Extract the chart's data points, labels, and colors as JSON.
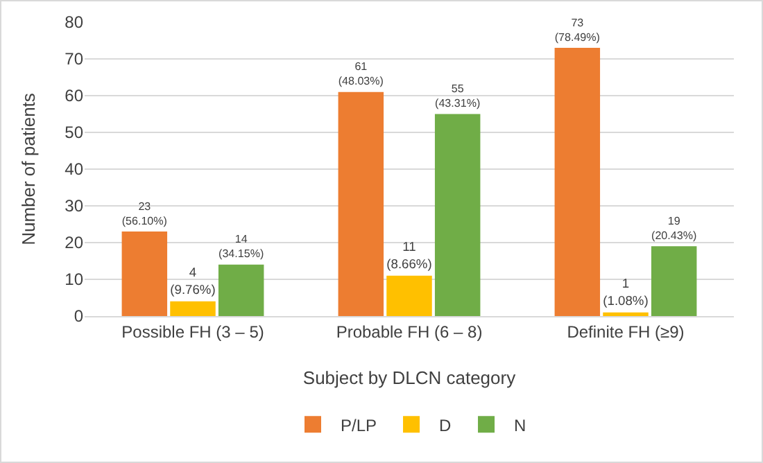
{
  "chart_data": {
    "type": "bar",
    "xlabel": "Subject by DLCN category",
    "ylabel": "Number of patients",
    "categories": [
      "Possible FH (3 – 5)",
      "Probable FH (6 – 8)",
      "Definite FH (≥9)"
    ],
    "series": [
      {
        "name": "P/LP",
        "color": "#ed7d31",
        "values": [
          23,
          61,
          73
        ],
        "value_labels": [
          "23\n(56.10%)",
          "61\n(48.03%)",
          "73\n(78.49%)"
        ]
      },
      {
        "name": "D",
        "color": "#ffc000",
        "values": [
          4,
          11,
          1
        ],
        "value_labels": [
          "4\n(9.76%)",
          "11\n(8.66%)",
          "1\n(1.08%)"
        ]
      },
      {
        "name": "N",
        "color": "#70ad47",
        "values": [
          14,
          55,
          19
        ],
        "value_labels": [
          "14\n(34.15%)",
          "55\n(43.31%)",
          "19\n(20.43%)"
        ]
      }
    ],
    "ylim": [
      0,
      80
    ],
    "yticks": [
      0,
      10,
      20,
      30,
      40,
      50,
      60,
      70,
      80
    ],
    "grid": "y",
    "legend": "bottom"
  }
}
